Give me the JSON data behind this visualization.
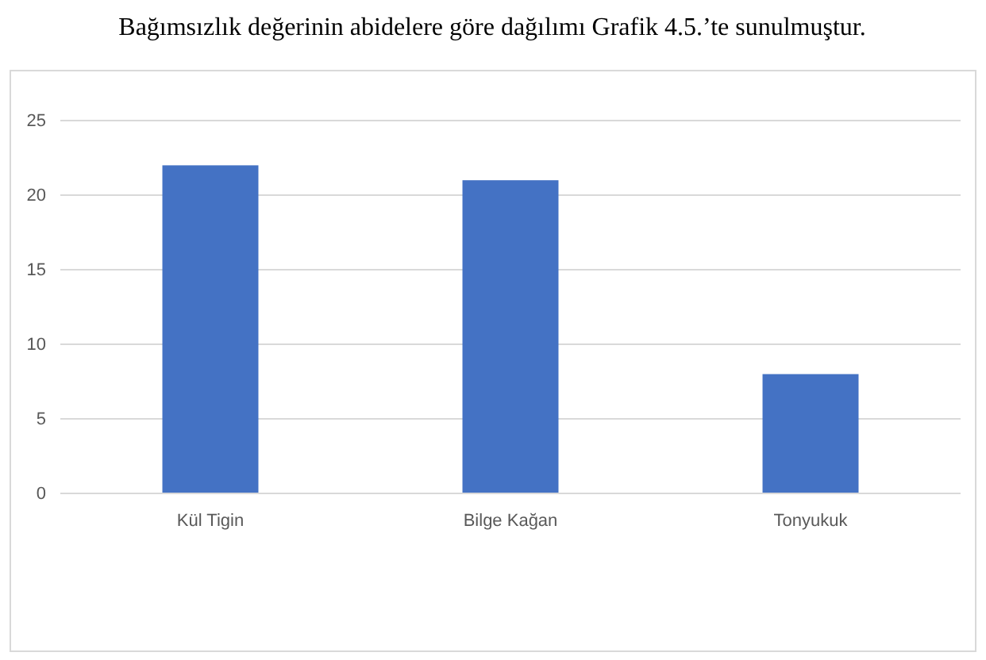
{
  "chart_data": {
    "type": "bar",
    "title": "Bağımsızlık değerinin abidelere göre dağılımı Grafik 4.5.’te sunulmuştur.",
    "categories": [
      "Kül Tigin",
      "Bilge Kağan",
      "Tonyukuk"
    ],
    "values": [
      22,
      21,
      8
    ],
    "color": "#4472c4",
    "ylim": [
      0,
      25
    ],
    "yticks": [
      0,
      5,
      10,
      15,
      20,
      25
    ],
    "grid": "y"
  }
}
